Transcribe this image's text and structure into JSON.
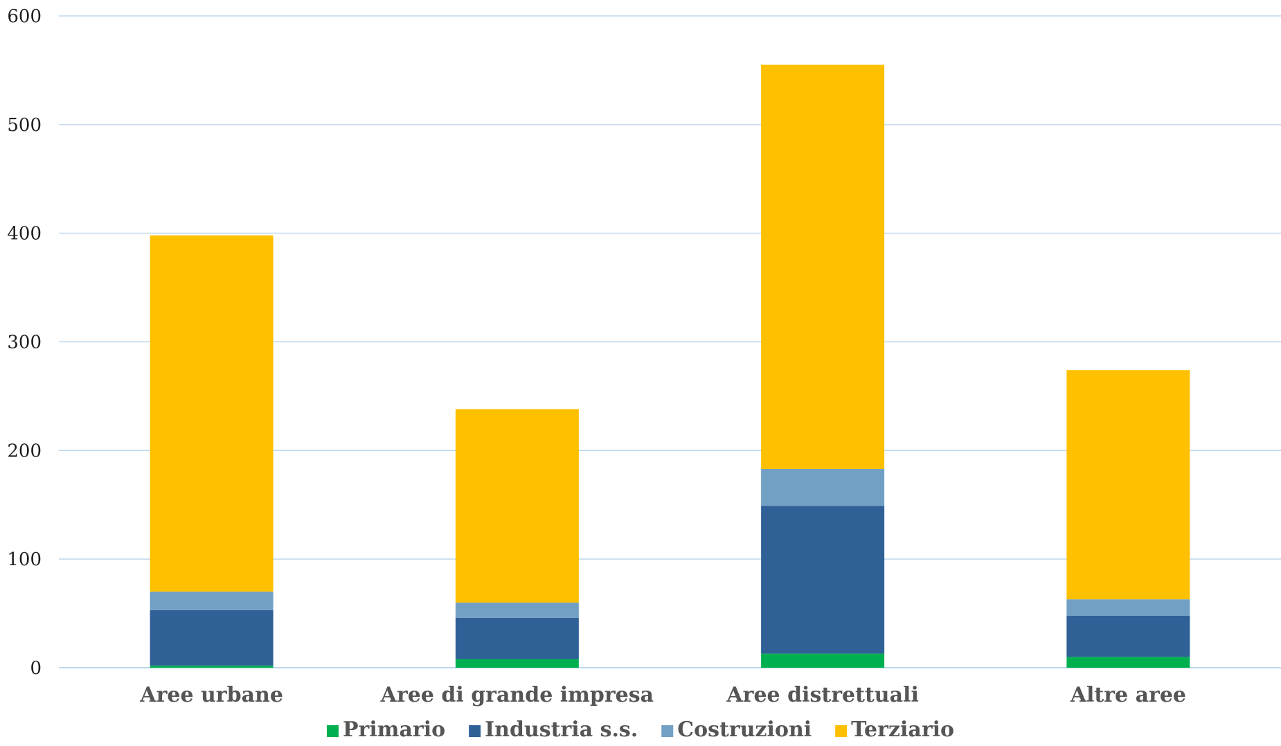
{
  "chart_data": {
    "type": "bar",
    "stacked": true,
    "categories": [
      "Aree urbane",
      "Aree di grande impresa",
      "Aree distrettuali",
      "Altre aree"
    ],
    "series": [
      {
        "name": "Primario",
        "color": "#00b050",
        "values": [
          2,
          8,
          13,
          10
        ]
      },
      {
        "name": "Industria s.s.",
        "color": "#2f6096",
        "values": [
          51,
          38,
          136,
          38
        ]
      },
      {
        "name": "Costruzioni",
        "color": "#72a0c5",
        "values": [
          17,
          14,
          34,
          15
        ]
      },
      {
        "name": "Terziario",
        "color": "#ffc000",
        "values": [
          328,
          178,
          372,
          211
        ]
      }
    ],
    "ylim": [
      0,
      600
    ],
    "yticks": [
      0,
      100,
      200,
      300,
      400,
      500,
      600
    ],
    "grid": true,
    "gridColor": "#bdd7ee",
    "legend": "bottom",
    "title": "",
    "xlabel": "",
    "ylabel": ""
  }
}
